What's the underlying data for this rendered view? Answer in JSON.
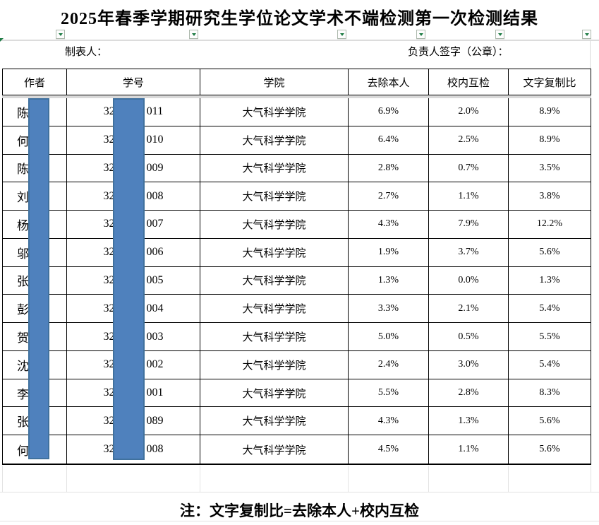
{
  "title": "2025年春季学期研究生学位论文学术不端检测第一次检测结果",
  "labels": {
    "preparer": "制表人：",
    "signer": "负责人签字（公章）："
  },
  "icons": {
    "filter_dropdown": "▼"
  },
  "table": {
    "columns": [
      {
        "key": "author",
        "label": "作者"
      },
      {
        "key": "student_id",
        "label": "学号"
      },
      {
        "key": "college",
        "label": "学院"
      },
      {
        "key": "self_excluded",
        "label": "去除本人"
      },
      {
        "key": "internal_check",
        "label": "校内互检"
      },
      {
        "key": "copy_ratio",
        "label": "文字复制比"
      }
    ],
    "rows": [
      {
        "author_visible": "陈",
        "id_prefix": "32",
        "id_suffix": "011",
        "college": "大气科学学院",
        "self_excluded": "6.9%",
        "internal_check": "2.0%",
        "copy_ratio": "8.9%"
      },
      {
        "author_visible": "何",
        "id_prefix": "32",
        "id_suffix": "010",
        "college": "大气科学学院",
        "self_excluded": "6.4%",
        "internal_check": "2.5%",
        "copy_ratio": "8.9%"
      },
      {
        "author_visible": "陈",
        "id_prefix": "32",
        "id_suffix": "009",
        "college": "大气科学学院",
        "self_excluded": "2.8%",
        "internal_check": "0.7%",
        "copy_ratio": "3.5%"
      },
      {
        "author_visible": "刘",
        "id_prefix": "32",
        "id_suffix": "008",
        "college": "大气科学学院",
        "self_excluded": "2.7%",
        "internal_check": "1.1%",
        "copy_ratio": "3.8%"
      },
      {
        "author_visible": "杨",
        "id_prefix": "32",
        "id_suffix": "007",
        "college": "大气科学学院",
        "self_excluded": "4.3%",
        "internal_check": "7.9%",
        "copy_ratio": "12.2%"
      },
      {
        "author_visible": "邬",
        "id_prefix": "32",
        "id_suffix": "006",
        "college": "大气科学学院",
        "self_excluded": "1.9%",
        "internal_check": "3.7%",
        "copy_ratio": "5.6%"
      },
      {
        "author_visible": "张",
        "id_prefix": "32",
        "id_suffix": "005",
        "college": "大气科学学院",
        "self_excluded": "1.3%",
        "internal_check": "0.0%",
        "copy_ratio": "1.3%"
      },
      {
        "author_visible": "彭",
        "id_prefix": "32",
        "id_suffix": "004",
        "college": "大气科学学院",
        "self_excluded": "3.3%",
        "internal_check": "2.1%",
        "copy_ratio": "5.4%"
      },
      {
        "author_visible": "贺",
        "id_prefix": "32",
        "id_suffix": "003",
        "college": "大气科学学院",
        "self_excluded": "5.0%",
        "internal_check": "0.5%",
        "copy_ratio": "5.5%"
      },
      {
        "author_visible": "沈",
        "id_prefix": "32",
        "id_suffix": "002",
        "college": "大气科学学院",
        "self_excluded": "2.4%",
        "internal_check": "3.0%",
        "copy_ratio": "5.4%"
      },
      {
        "author_visible": "李",
        "id_prefix": "32",
        "id_suffix": "001",
        "college": "大气科学学院",
        "self_excluded": "5.5%",
        "internal_check": "2.8%",
        "copy_ratio": "8.3%"
      },
      {
        "author_visible": "张",
        "id_prefix": "32",
        "id_suffix": "089",
        "college": "大气科学学院",
        "self_excluded": "4.3%",
        "internal_check": "1.3%",
        "copy_ratio": "5.6%"
      },
      {
        "author_visible": "何",
        "id_prefix": "32",
        "id_suffix": "008",
        "college": "大气科学学院",
        "self_excluded": "4.5%",
        "internal_check": "1.1%",
        "copy_ratio": "5.6%"
      }
    ]
  },
  "note": "注：文字复制比=去除本人+校内互检",
  "colors": {
    "redaction_fill": "#4f81bd",
    "redaction_border": "#40719e",
    "filter_arrow": "#1e7c45",
    "gridline": "#d9d9d9"
  }
}
